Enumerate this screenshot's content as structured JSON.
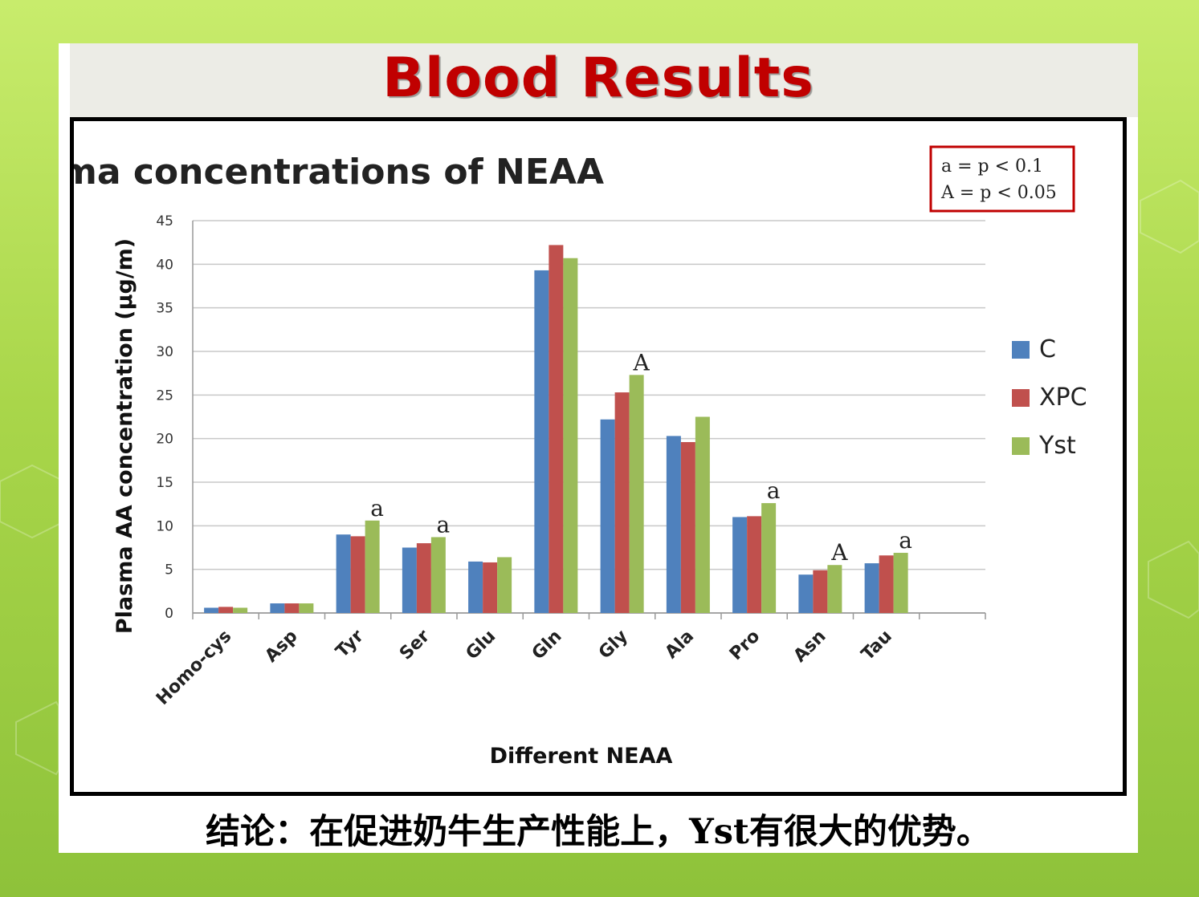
{
  "slide": {
    "title": "Blood Results",
    "conclusion": "结论：在促进奶牛生产性能上，Yst有很大的优势。"
  },
  "significance_key": {
    "line1": "a = p < 0.1",
    "line2": "A = p < 0.05",
    "border_color": "#c00000"
  },
  "colors": {
    "title": "#c00000",
    "background": "#a9d64a"
  },
  "chart_data": {
    "type": "bar",
    "title": "Plasma concentrations of NEAA",
    "xlabel": "Different NEAA",
    "ylabel": "Plasma AA concentration (µg/m)",
    "ylim": [
      0,
      45
    ],
    "yticks": [
      0,
      5,
      10,
      15,
      20,
      25,
      30,
      35,
      40,
      45
    ],
    "categories": [
      "Homo-cys",
      "Asp",
      "Tyr",
      "Ser",
      "Glu",
      "Gln",
      "Gly",
      "Ala",
      "Pro",
      "Asn",
      "Tau"
    ],
    "series": [
      {
        "name": "C",
        "color": "#4f81bd",
        "values": [
          0.6,
          1.1,
          9.0,
          7.5,
          5.9,
          39.3,
          22.2,
          20.3,
          11.0,
          4.4,
          5.7
        ]
      },
      {
        "name": "XPC",
        "color": "#c0504d",
        "values": [
          0.7,
          1.1,
          8.8,
          8.0,
          5.8,
          42.2,
          25.3,
          19.6,
          11.1,
          4.9,
          6.6
        ]
      },
      {
        "name": "Yst",
        "color": "#9bbb59",
        "values": [
          0.6,
          1.1,
          10.6,
          8.7,
          6.4,
          40.7,
          27.3,
          22.5,
          12.6,
          5.5,
          6.9
        ]
      }
    ],
    "annotations": [
      {
        "category": "Tyr",
        "series": "Yst",
        "label": "a"
      },
      {
        "category": "Ser",
        "series": "Yst",
        "label": "a"
      },
      {
        "category": "Gly",
        "series": "Yst",
        "label": "A"
      },
      {
        "category": "Pro",
        "series": "Yst",
        "label": "a"
      },
      {
        "category": "Asn",
        "series": "Yst",
        "label": "A"
      },
      {
        "category": "Tau",
        "series": "Yst",
        "label": "a"
      }
    ],
    "legend_position": "right",
    "grid": true
  }
}
